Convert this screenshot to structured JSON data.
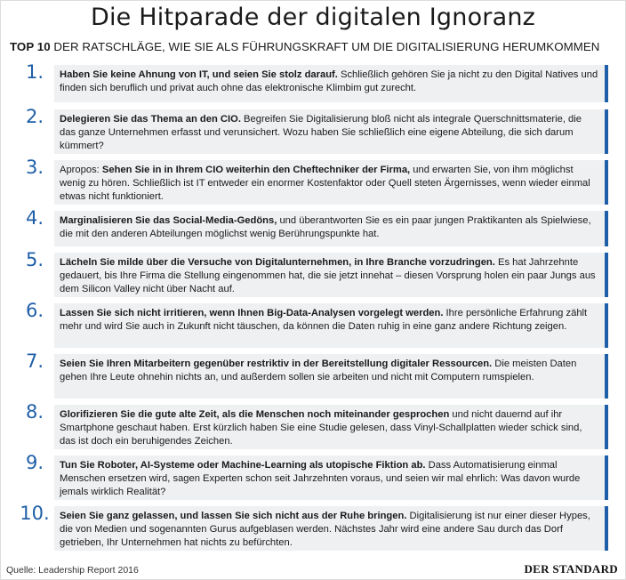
{
  "header": {
    "title": "Die Hitparade der digitalen Ignoranz",
    "subtitle_strong": "TOP 10",
    "subtitle_rest": "DER RATSCHLÄGE, WIE SIE ALS FÜHRUNGSKRAFT UM DIE DIGITALISIERUNG  HERUMKOMMEN"
  },
  "items": [
    {
      "num": "1.",
      "pre": "",
      "bold": "Haben Sie keine Ahnung von IT, und seien Sie stolz darauf.",
      "rest": " Schließlich gehören Sie ja nicht zu den Digital Natives und finden sich beruflich und privat auch ohne das elektronische Klimbim gut zurecht."
    },
    {
      "num": "2.",
      "pre": "",
      "bold": "Delegieren Sie das Thema an den CIO.",
      "rest": " Begreifen Sie Digitalisierung bloß nicht als integrale Querschnittsmaterie, die das ganze Unternehmen erfasst und verunsichert. Wozu haben Sie schließlich eine eigene Abteilung, die sich darum kümmert?"
    },
    {
      "num": "3.",
      "pre": "Apropos: ",
      "bold": "Sehen Sie in in Ihrem CIO weiterhin den Cheftechniker der Firma,",
      "rest": " und erwarten Sie, von ihm möglichst wenig zu hören. Schließlich ist IT entweder ein enormer Kostenfaktor oder Quell steten Ärgernisses, wenn wieder einmal etwas nicht funktioniert."
    },
    {
      "num": "4.",
      "pre": "",
      "bold": "Marginalisieren Sie das Social-Media-Gedöns,",
      "rest": " und überantworten Sie es ein paar jungen Praktikanten als Spielwiese, die mit den anderen Abteilungen möglichst wenig Berührungspunkte hat."
    },
    {
      "num": "5.",
      "pre": "",
      "bold": "Lächeln Sie milde über die Versuche von Digitalunternehmen, in Ihre Branche vorzudringen.",
      "rest": " Es hat Jahrzehnte gedauert, bis Ihre Firma die Stellung eingenommen hat, die sie jetzt innehat – diesen Vorsprung holen ein paar Jungs aus dem Silicon Valley nicht über Nacht auf."
    },
    {
      "num": "6.",
      "pre": "",
      "bold": "Lassen Sie sich nicht irritieren, wenn Ihnen Big-Data-Analysen vorgelegt werden.",
      "rest": " Ihre persönliche Erfahrung zählt mehr und wird Sie auch in Zukunft nicht täuschen, da können die Daten ruhig in eine ganz andere Richtung zeigen."
    },
    {
      "num": "7.",
      "pre": "",
      "bold": "Seien Sie Ihren Mitarbeitern gegenüber restriktiv in der Bereitstellung digitaler Ressourcen.",
      "rest": " Die meisten Daten gehen Ihre Leute ohnehin nichts an, und außerdem sollen sie arbeiten und nicht mit Computern rumspielen."
    },
    {
      "num": "8.",
      "pre": "",
      "bold": "Glorifizieren Sie die gute alte Zeit, als die Menschen noch miteinander gesprochen",
      "rest": " und nicht dauernd auf ihr Smartphone geschaut haben. Erst kürzlich haben Sie eine Studie gelesen, dass Vinyl-Schallplatten wieder schick sind, das ist doch ein beruhigendes Zeichen."
    },
    {
      "num": "9.",
      "pre": "",
      "bold": "Tun Sie Roboter, AI-Systeme oder Machine-Learning als utopische Fiktion ab.",
      "rest": " Dass Automatisierung einmal Menschen ersetzen wird, sagen Experten schon seit Jahrzehnten voraus, und seien wir mal ehrlich: Was davon wurde jemals wirklich Realität?"
    },
    {
      "num": "10.",
      "pre": "",
      "bold": "Seien Sie ganz gelassen, und lassen Sie sich nicht aus der Ruhe bringen.",
      "rest": " Digitalisierung ist nur einer dieser Hypes, die von Medien und sogenannten Gurus aufgeblasen werden. Nächstes Jahr wird eine andere Sau durch das Dorf getrieben, Ihr Unternehmen hat nichts zu befürchten."
    }
  ],
  "footer": {
    "source": "Quelle: Leadership Report 2016",
    "logo": "DER STANDARD"
  },
  "colors": {
    "accent": "#1f5fa8",
    "box_bg": "#eef0f2"
  }
}
